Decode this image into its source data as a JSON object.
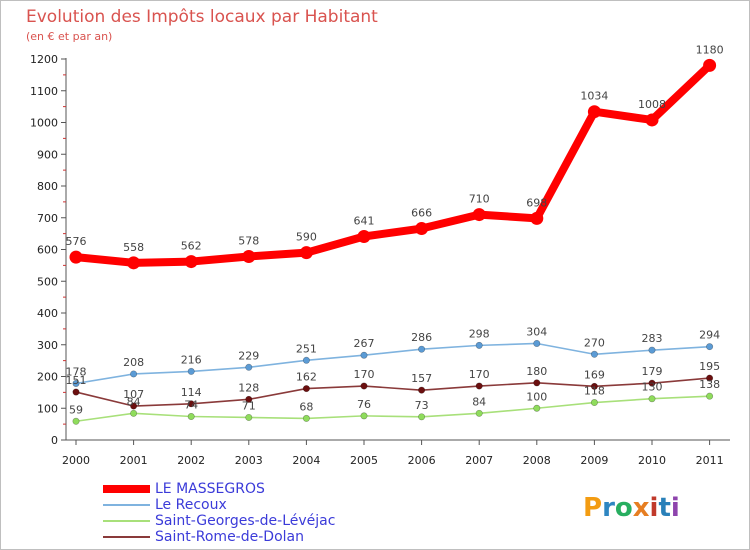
{
  "chart_data": {
    "type": "line",
    "title": "Evolution des Impôts locaux par Habitant",
    "subtitle": "(en € et par an)",
    "xlabel": "",
    "ylabel": "",
    "ylim": [
      0,
      1200
    ],
    "yticks": [
      0,
      100,
      200,
      300,
      400,
      500,
      600,
      700,
      800,
      900,
      1000,
      1100,
      1200
    ],
    "grid": false,
    "legend_position": "bottom-left",
    "x": [
      "2000",
      "2001",
      "2002",
      "2003",
      "2004",
      "2005",
      "2006",
      "2007",
      "2008",
      "2009",
      "2010",
      "2011"
    ],
    "series": [
      {
        "name": "LE MASSEGROS",
        "color": "#ff0000",
        "line_color": "#ff0000",
        "values": [
          576,
          558,
          562,
          578,
          590,
          641,
          666,
          710,
          698,
          1034,
          1008,
          1180
        ]
      },
      {
        "name": "Le Recoux",
        "color": "#5b9bd5",
        "line_color": "#7fb3df",
        "values": [
          178,
          208,
          216,
          229,
          251,
          267,
          286,
          298,
          304,
          270,
          283,
          294
        ]
      },
      {
        "name": "Saint-Georges-de-Lévéjac",
        "color": "#8fdc5c",
        "line_color": "#a8e07a",
        "values": [
          59,
          84,
          74,
          71,
          68,
          76,
          73,
          84,
          100,
          118,
          130,
          138
        ]
      },
      {
        "name": "Saint-Rome-de-Dolan",
        "color": "#6b0f0f",
        "line_color": "#8a3a3a",
        "values": [
          151,
          107,
          114,
          128,
          162,
          170,
          157,
          170,
          180,
          169,
          179,
          195
        ]
      }
    ]
  },
  "logo": {
    "text": "Proxiti",
    "letters": [
      "P",
      "r",
      "o",
      "x",
      "i",
      "t",
      "i"
    ]
  }
}
